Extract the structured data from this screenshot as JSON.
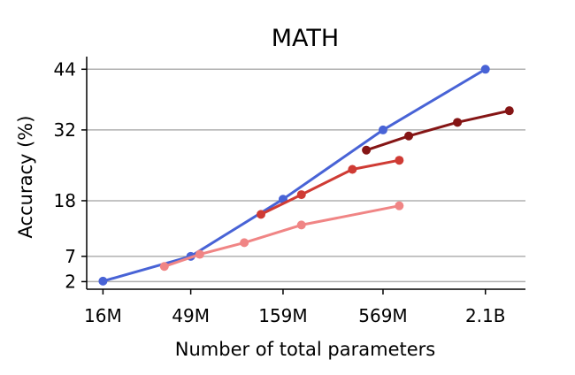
{
  "chart_data": {
    "type": "line",
    "title": "MATH",
    "xlabel": "Number of total parameters",
    "ylabel": "Accuracy (%)",
    "x_scale": "log",
    "x_ticks": [
      {
        "value": 16000000,
        "label": "16M"
      },
      {
        "value": 49000000,
        "label": "49M"
      },
      {
        "value": 159000000,
        "label": "159M"
      },
      {
        "value": 569000000,
        "label": "569M"
      },
      {
        "value": 2100000000,
        "label": "2.1B"
      }
    ],
    "y_ticks": [
      2,
      7,
      18,
      32,
      44
    ],
    "xlim": [
      13000000,
      3500000000
    ],
    "ylim": [
      0.5,
      46.5
    ],
    "grid": "horizontal",
    "legend": "none",
    "series": [
      {
        "color": "#4863d6",
        "points": [
          {
            "x": 16000000,
            "y": 2.1
          },
          {
            "x": 49000000,
            "y": 7.0
          },
          {
            "x": 159000000,
            "y": 18.3
          },
          {
            "x": 569000000,
            "y": 32.0
          },
          {
            "x": 2100000000,
            "y": 44.0
          }
        ]
      },
      {
        "color": "#f08585",
        "points": [
          {
            "x": 35000000,
            "y": 5.0
          },
          {
            "x": 55000000,
            "y": 7.4
          },
          {
            "x": 97000000,
            "y": 9.7
          },
          {
            "x": 201000000,
            "y": 13.2
          },
          {
            "x": 700000000,
            "y": 17.0
          }
        ]
      },
      {
        "color": "#cf3b34",
        "points": [
          {
            "x": 120000000,
            "y": 15.3
          },
          {
            "x": 201000000,
            "y": 19.2
          },
          {
            "x": 385000000,
            "y": 24.2
          },
          {
            "x": 700000000,
            "y": 26.0
          }
        ]
      },
      {
        "color": "#851515",
        "points": [
          {
            "x": 460000000,
            "y": 28.0
          },
          {
            "x": 790000000,
            "y": 30.8
          },
          {
            "x": 1470000000,
            "y": 33.5
          },
          {
            "x": 2850000000,
            "y": 35.8
          }
        ]
      }
    ]
  }
}
